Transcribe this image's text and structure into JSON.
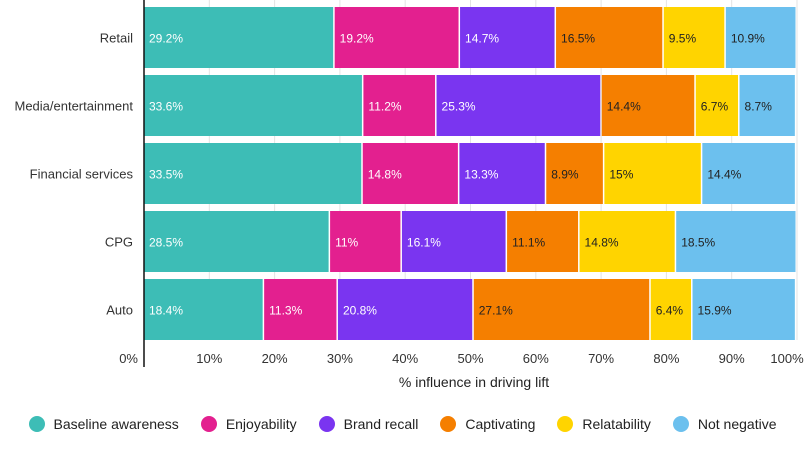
{
  "chart_data": {
    "type": "bar",
    "orientation": "horizontal",
    "stacked": true,
    "categories": [
      "Retail",
      "Media/entertainment",
      "Financial services",
      "CPG",
      "Auto"
    ],
    "series": [
      {
        "name": "Baseline awareness",
        "color": "#3dbdb6",
        "values": [
          29.2,
          33.6,
          33.5,
          28.5,
          18.4
        ],
        "labels": [
          "29.2%",
          "33.6%",
          "33.5%",
          "28.5%",
          "18.4%"
        ]
      },
      {
        "name": "Enjoyability",
        "color": "#e3208f",
        "values": [
          19.2,
          11.2,
          14.8,
          11,
          11.3
        ],
        "labels": [
          "19.2%",
          "11.2%",
          "14.8%",
          "11%",
          "11.3%"
        ]
      },
      {
        "name": "Brand recall",
        "color": "#7a35f0",
        "values": [
          14.7,
          25.3,
          13.3,
          16.1,
          20.8
        ],
        "labels": [
          "14.7%",
          "25.3%",
          "13.3%",
          "16.1%",
          "20.8%"
        ]
      },
      {
        "name": "Captivating",
        "color": "#f57f00",
        "values": [
          16.5,
          14.4,
          8.9,
          11.1,
          27.1
        ],
        "labels": [
          "16.5%",
          "14.4%",
          "8.9%",
          "11.1%",
          "27.1%"
        ]
      },
      {
        "name": "Relatability",
        "color": "#ffd400",
        "values": [
          9.5,
          6.7,
          15,
          14.8,
          6.4
        ],
        "labels": [
          "9.5%",
          "6.7%",
          "15%",
          "14.8%",
          "6.4%"
        ]
      },
      {
        "name": "Not negative",
        "color": "#6cc0ee",
        "values": [
          10.9,
          8.7,
          14.4,
          18.5,
          15.9
        ],
        "labels": [
          "10.9%",
          "8.7%",
          "14.4%",
          "18.5%",
          "15.9%"
        ]
      }
    ],
    "xlabel": "% influence in driving lift",
    "xlim": [
      0,
      100
    ],
    "xticks": [
      "0%",
      "10%",
      "20%",
      "30%",
      "40%",
      "50%",
      "60%",
      "70%",
      "80%",
      "90%",
      "100%"
    ],
    "grid": "vertical",
    "legend_position": "bottom"
  }
}
